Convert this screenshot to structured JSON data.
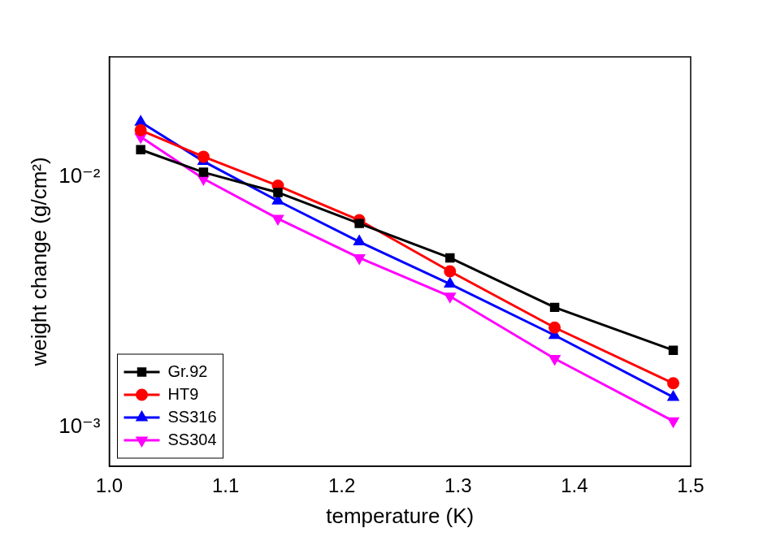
{
  "chart_data": {
    "type": "line",
    "x_label": "temperature (K)",
    "y_label": "weight change (g/cm²)",
    "x": [
      1.027,
      1.081,
      1.145,
      1.215,
      1.293,
      1.383,
      1.485
    ],
    "series": [
      {
        "name": "Gr.92",
        "color": "#000000",
        "marker": "square",
        "values": [
          0.0128,
          0.0104,
          0.00864,
          0.0065,
          0.00474,
          0.00301,
          0.00203
        ]
      },
      {
        "name": "HT9",
        "color": "#ff0000",
        "marker": "circle",
        "values": [
          0.0153,
          0.012,
          0.0092,
          0.0067,
          0.00419,
          0.0025,
          0.0015
        ]
      },
      {
        "name": "SS316",
        "color": "#0000ff",
        "marker": "triangle-up",
        "values": [
          0.0165,
          0.0115,
          0.008,
          0.0055,
          0.00373,
          0.00233,
          0.00132
        ]
      },
      {
        "name": "SS304",
        "color": "#ff00ff",
        "marker": "triangle-down",
        "values": [
          0.0144,
          0.0098,
          0.0068,
          0.00474,
          0.00333,
          0.00188,
          0.00106
        ]
      }
    ],
    "xlim": [
      1.0,
      1.5
    ],
    "xticks": [
      {
        "value": 1.0,
        "label": "1.0"
      },
      1.1,
      1.2,
      1.3,
      1.4,
      1.5
    ],
    "ylim": [
      0.0007,
      0.03
    ],
    "yticks": [
      {
        "value": 0.001,
        "label": "10⁻³"
      },
      {
        "value": 0.01,
        "label": "10⁻²"
      }
    ],
    "log": "y",
    "grid": false,
    "legend": "lower left"
  }
}
